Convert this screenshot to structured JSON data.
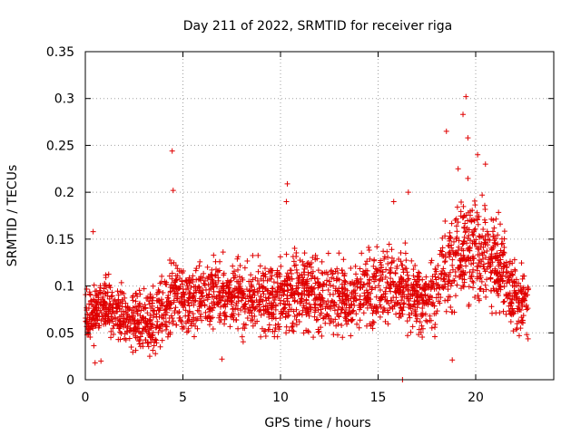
{
  "chart_data": {
    "type": "scatter",
    "title": "Day 211 of 2022, SRMTID for receiver riga",
    "xlabel": "GPS time / hours",
    "ylabel": "SRMTID / TECUs",
    "xlim": [
      0,
      24
    ],
    "ylim": [
      0,
      0.35
    ],
    "x_ticks": [
      0,
      5,
      10,
      15,
      20
    ],
    "x_tick_labels": [
      "0",
      "5",
      "10",
      "15",
      "20"
    ],
    "y_ticks": [
      0,
      0.05,
      0.1,
      0.15,
      0.2,
      0.25,
      0.3,
      0.35
    ],
    "y_tick_labels": [
      "0",
      "0.05",
      "0.1",
      "0.15",
      "0.2",
      "0.25",
      "0.3",
      "0.35"
    ],
    "grid": true,
    "marker": "plus",
    "colors": {
      "series": "#e00000",
      "grid": "#a0a0a0",
      "axes": "#000000"
    },
    "series": [
      {
        "name": "SRMTID",
        "trend": [
          [
            0.0,
            0.065
          ],
          [
            0.5,
            0.072
          ],
          [
            1.0,
            0.078
          ],
          [
            1.5,
            0.075
          ],
          [
            2.0,
            0.07
          ],
          [
            2.5,
            0.065
          ],
          [
            3.0,
            0.06
          ],
          [
            3.5,
            0.062
          ],
          [
            4.0,
            0.075
          ],
          [
            4.5,
            0.09
          ],
          [
            5.0,
            0.085
          ],
          [
            5.5,
            0.083
          ],
          [
            6.0,
            0.088
          ],
          [
            6.5,
            0.092
          ],
          [
            7.0,
            0.09
          ],
          [
            7.5,
            0.088
          ],
          [
            8.0,
            0.09
          ],
          [
            8.5,
            0.088
          ],
          [
            9.0,
            0.087
          ],
          [
            9.5,
            0.085
          ],
          [
            10.0,
            0.09
          ],
          [
            10.5,
            0.095
          ],
          [
            11.0,
            0.092
          ],
          [
            11.5,
            0.088
          ],
          [
            12.0,
            0.09
          ],
          [
            12.5,
            0.092
          ],
          [
            13.0,
            0.09
          ],
          [
            13.5,
            0.088
          ],
          [
            14.0,
            0.09
          ],
          [
            14.5,
            0.095
          ],
          [
            15.0,
            0.1
          ],
          [
            15.5,
            0.105
          ],
          [
            16.0,
            0.1
          ],
          [
            16.5,
            0.095
          ],
          [
            17.0,
            0.085
          ],
          [
            17.5,
            0.085
          ],
          [
            18.0,
            0.1
          ],
          [
            18.5,
            0.12
          ],
          [
            19.0,
            0.135
          ],
          [
            19.5,
            0.145
          ],
          [
            20.0,
            0.14
          ],
          [
            20.5,
            0.135
          ],
          [
            21.0,
            0.125
          ],
          [
            21.5,
            0.11
          ],
          [
            22.0,
            0.09
          ],
          [
            22.5,
            0.08
          ],
          [
            22.7,
            0.08
          ]
        ],
        "spread": [
          [
            0.0,
            0.025
          ],
          [
            4.0,
            0.03
          ],
          [
            10.0,
            0.035
          ],
          [
            17.5,
            0.035
          ],
          [
            18.5,
            0.045
          ],
          [
            20.0,
            0.05
          ],
          [
            22.0,
            0.035
          ],
          [
            22.7,
            0.03
          ]
        ],
        "outliers": [
          [
            4.45,
            0.244
          ],
          [
            4.5,
            0.202
          ],
          [
            10.35,
            0.209
          ],
          [
            10.3,
            0.19
          ],
          [
            19.5,
            0.302
          ],
          [
            19.35,
            0.283
          ],
          [
            18.5,
            0.265
          ],
          [
            20.1,
            0.24
          ],
          [
            16.55,
            0.2
          ],
          [
            19.1,
            0.225
          ],
          [
            19.6,
            0.258
          ],
          [
            0.4,
            0.158
          ],
          [
            0.5,
            0.018
          ],
          [
            0.8,
            0.02
          ],
          [
            3.3,
            0.025
          ],
          [
            18.8,
            0.021
          ],
          [
            7.0,
            0.022
          ],
          [
            16.25,
            0.0
          ],
          [
            15.8,
            0.19
          ],
          [
            20.5,
            0.23
          ]
        ]
      }
    ]
  }
}
